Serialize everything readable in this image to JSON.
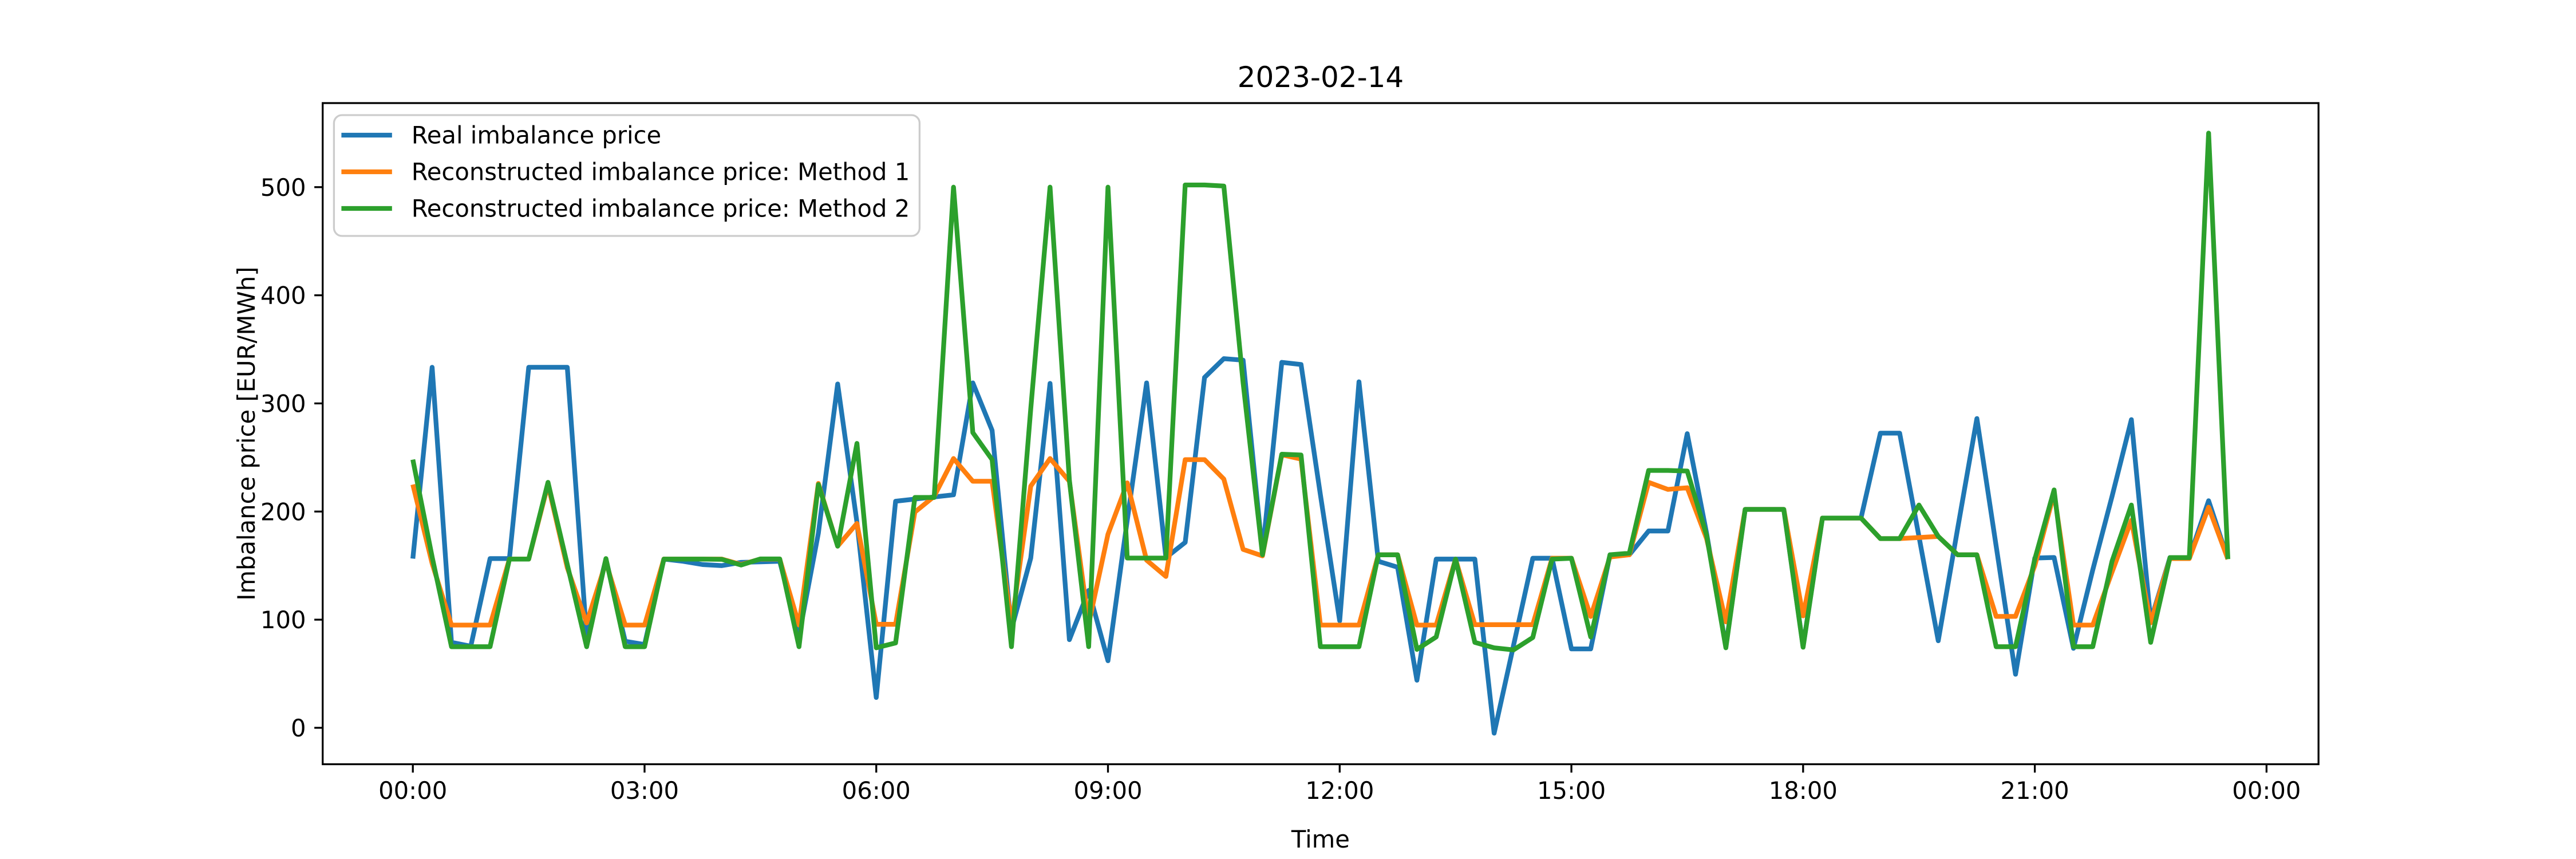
{
  "figure": {
    "title": "2023-02-14",
    "background_color": "#ffffff",
    "text_color": "#000000"
  },
  "legend": {
    "position": "upper left",
    "border_color": "#cccccc",
    "background_color": "#ffffff",
    "entries": [
      {
        "label": "Real imbalance price",
        "color": "#1f77b4"
      },
      {
        "label": "Reconstructed imbalance price: Method 1",
        "color": "#ff7f0e"
      },
      {
        "label": "Reconstructed imbalance price: Method 2",
        "color": "#2ca02c"
      }
    ]
  },
  "chart_data": {
    "type": "line",
    "title": "2023-02-14",
    "xlabel": "Time",
    "ylabel": "Imbalance price [EUR/MWh]",
    "grid": false,
    "legend_position": "upper left",
    "x_tick_labels": [
      "00:00",
      "03:00",
      "06:00",
      "09:00",
      "12:00",
      "15:00",
      "18:00",
      "21:00",
      "00:00"
    ],
    "y_tick_values": [
      0,
      100,
      200,
      300,
      400,
      500
    ],
    "ylim": [
      -33.7,
      577.7
    ],
    "x": [
      "00:00",
      "00:15",
      "00:30",
      "00:45",
      "01:00",
      "01:15",
      "01:30",
      "01:45",
      "02:00",
      "02:15",
      "02:30",
      "02:45",
      "03:00",
      "03:15",
      "03:30",
      "03:45",
      "04:00",
      "04:15",
      "04:30",
      "04:45",
      "05:00",
      "05:15",
      "05:30",
      "05:45",
      "06:00",
      "06:15",
      "06:30",
      "06:45",
      "07:00",
      "07:15",
      "07:30",
      "07:45",
      "08:00",
      "08:15",
      "08:30",
      "08:45",
      "09:00",
      "09:15",
      "09:30",
      "09:45",
      "10:00",
      "10:15",
      "10:30",
      "10:45",
      "11:00",
      "11:15",
      "11:30",
      "11:45",
      "12:00",
      "12:15",
      "12:30",
      "12:45",
      "13:00",
      "13:15",
      "13:30",
      "13:45",
      "14:00",
      "14:15",
      "14:30",
      "14:45",
      "15:00",
      "15:15",
      "15:30",
      "15:45",
      "16:00",
      "16:15",
      "16:30",
      "16:45",
      "17:00",
      "17:15",
      "17:30",
      "17:45",
      "18:00",
      "18:15",
      "18:30",
      "18:45",
      "19:00",
      "19:15",
      "19:30",
      "19:45",
      "20:00",
      "20:15",
      "20:30",
      "20:45",
      "21:00",
      "21:15",
      "21:30",
      "21:45",
      "22:00",
      "22:15",
      "22:30",
      "22:45",
      "23:00",
      "23:15",
      "23:30"
    ],
    "series": [
      {
        "name": "Real imbalance price",
        "color": "#1f77b4",
        "values": [
          156.5,
          333.4,
          79,
          75.4,
          156.5,
          156.5,
          333.4,
          333.4,
          333.4,
          84,
          156,
          80,
          77,
          156,
          154,
          151,
          150,
          153,
          153.5,
          154,
          85,
          180,
          318,
          190,
          28,
          209.5,
          211.5,
          213.5,
          215.5,
          319,
          275,
          91,
          157,
          318.5,
          81.5,
          127,
          62,
          192,
          319,
          157.4,
          171.5,
          324,
          341.4,
          340,
          162,
          338,
          336,
          215.5,
          99,
          320,
          154,
          148.5,
          44,
          156,
          156,
          156,
          -5,
          76,
          156.8,
          156.8,
          73,
          73,
          160,
          160,
          182,
          182,
          272,
          180,
          75,
          202,
          202,
          202,
          75,
          194,
          194,
          194,
          272.5,
          272.5,
          177,
          80.5,
          184,
          286,
          168,
          49.5,
          157,
          157.5,
          73.5,
          146,
          214,
          285,
          99,
          157.4,
          157.4,
          210,
          156
        ]
      },
      {
        "name": "Reconstructed imbalance price: Method 1",
        "color": "#ff7f0e",
        "values": [
          225,
          152,
          95,
          95,
          95,
          156,
          156,
          225,
          148,
          97,
          153,
          95,
          95,
          156,
          156,
          156,
          156,
          151,
          156,
          156,
          95,
          226,
          168,
          189,
          95.7,
          95.7,
          199.5,
          214,
          249,
          228,
          228,
          95,
          223.5,
          249,
          228,
          96,
          179,
          226.5,
          155,
          140,
          248,
          248,
          230,
          165,
          159,
          252.5,
          248.5,
          95,
          95,
          95,
          160,
          160,
          95,
          95,
          156,
          95.4,
          95.4,
          95.4,
          95.4,
          156.8,
          156.8,
          103,
          158,
          160,
          227,
          220.5,
          222,
          175,
          98,
          202,
          202,
          202,
          103.5,
          194,
          194,
          194,
          175,
          175,
          176,
          177,
          160,
          160,
          103,
          103,
          150,
          217,
          95,
          95,
          144,
          192,
          97,
          156.5,
          156.5,
          204,
          156
        ]
      },
      {
        "name": "Reconstructed imbalance price: Method 2",
        "color": "#2ca02c",
        "values": [
          248,
          158,
          75,
          75,
          75,
          156,
          156,
          227,
          151,
          75,
          156.5,
          75,
          75,
          156,
          156,
          156,
          155.8,
          150.5,
          156.2,
          156.2,
          75,
          225,
          168,
          263,
          74,
          78.5,
          213,
          213,
          500,
          273,
          248,
          75,
          295,
          500,
          229,
          75,
          500,
          157,
          157,
          157,
          502,
          502,
          501,
          319,
          160,
          253,
          252.3,
          75,
          75,
          75,
          160,
          160,
          72.5,
          84,
          156,
          79,
          74,
          72,
          83.5,
          156,
          156.8,
          84,
          160,
          161.5,
          238,
          238,
          237.5,
          178,
          74,
          202,
          202,
          202,
          74.5,
          194,
          194,
          194,
          175,
          175,
          206,
          177,
          160,
          160,
          75,
          75,
          156,
          220,
          75,
          75,
          154,
          206,
          79,
          157.4,
          157.4,
          550,
          156
        ]
      }
    ]
  }
}
